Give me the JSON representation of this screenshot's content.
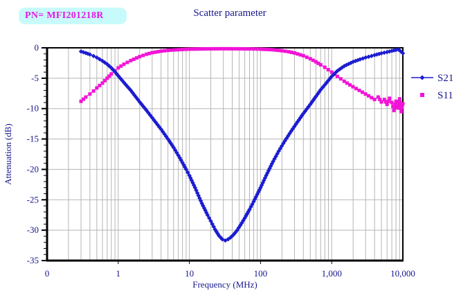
{
  "badge": {
    "label": "PN= MFI201218R",
    "bg": "#c9fafb",
    "text_color": "#e318e3"
  },
  "title": "Scatter parameter",
  "colors": {
    "axis_text": "#16168c",
    "grid": "#b5b5b5",
    "axis": "#000000",
    "background": "#ffffff"
  },
  "legend": {
    "items": [
      {
        "label": "S21",
        "color": "#1c1cd2",
        "marker": "diamond"
      },
      {
        "label": "S11",
        "color": "#f213d6",
        "marker": "square"
      }
    ]
  },
  "chart_data": {
    "type": "line",
    "title": "Scatter parameter",
    "xlabel": "Frequency (MHz)",
    "ylabel": "Attenuation (dB)",
    "x_scale": "log",
    "xlim": [
      0.1,
      10000
    ],
    "ylim": [
      -35,
      0
    ],
    "x_ticks": [
      {
        "value": 0.1,
        "label": "0"
      },
      {
        "value": 1,
        "label": "1"
      },
      {
        "value": 10,
        "label": "10"
      },
      {
        "value": 100,
        "label": "100"
      },
      {
        "value": 1000,
        "label": "1,000"
      },
      {
        "value": 10000,
        "label": "10,000"
      }
    ],
    "y_ticks": [
      0,
      -5,
      -10,
      -15,
      -20,
      -25,
      -30,
      -35
    ],
    "y_minor_tick_step": 1,
    "grid": true,
    "legend_position": "right-outside",
    "series": [
      {
        "name": "S21",
        "color": "#1c1cd2",
        "marker": "diamond",
        "points": [
          [
            0.3,
            -0.6
          ],
          [
            0.35,
            -0.85
          ],
          [
            0.4,
            -1.1
          ],
          [
            0.45,
            -1.35
          ],
          [
            0.5,
            -1.6
          ],
          [
            0.6,
            -2.15
          ],
          [
            0.7,
            -2.7
          ],
          [
            0.8,
            -3.3
          ],
          [
            0.9,
            -3.95
          ],
          [
            1,
            -4.6
          ],
          [
            1.2,
            -5.7
          ],
          [
            1.5,
            -7.0
          ],
          [
            2,
            -8.9
          ],
          [
            2.5,
            -10.3
          ],
          [
            3,
            -11.5
          ],
          [
            4,
            -13.4
          ],
          [
            5,
            -15.0
          ],
          [
            6,
            -16.4
          ],
          [
            7,
            -17.7
          ],
          [
            8,
            -18.9
          ],
          [
            9,
            -20.0
          ],
          [
            10,
            -21.0
          ],
          [
            12,
            -23.0
          ],
          [
            15,
            -25.6
          ],
          [
            18,
            -27.5
          ],
          [
            20,
            -28.5
          ],
          [
            23,
            -29.9
          ],
          [
            26,
            -30.9
          ],
          [
            29,
            -31.5
          ],
          [
            32,
            -31.7
          ],
          [
            35,
            -31.5
          ],
          [
            38,
            -31.2
          ],
          [
            42,
            -30.7
          ],
          [
            47,
            -30.0
          ],
          [
            52,
            -29.2
          ],
          [
            60,
            -28.0
          ],
          [
            70,
            -26.6
          ],
          [
            80,
            -25.3
          ],
          [
            90,
            -24.1
          ],
          [
            100,
            -23.0
          ],
          [
            120,
            -21.0
          ],
          [
            150,
            -18.7
          ],
          [
            180,
            -17.0
          ],
          [
            220,
            -15.3
          ],
          [
            270,
            -13.7
          ],
          [
            330,
            -12.2
          ],
          [
            400,
            -10.8
          ],
          [
            500,
            -9.3
          ],
          [
            600,
            -8.0
          ],
          [
            700,
            -6.9
          ],
          [
            800,
            -6.1
          ],
          [
            1000,
            -4.7
          ],
          [
            1200,
            -3.8
          ],
          [
            1500,
            -3.0
          ],
          [
            2000,
            -2.3
          ],
          [
            2500,
            -1.9
          ],
          [
            3000,
            -1.6
          ],
          [
            4000,
            -1.2
          ],
          [
            5000,
            -0.9
          ],
          [
            6000,
            -0.7
          ],
          [
            7000,
            -0.5
          ],
          [
            8000,
            -0.35
          ],
          [
            8700,
            -0.3
          ],
          [
            9300,
            -0.55
          ],
          [
            10000,
            -0.9
          ]
        ]
      },
      {
        "name": "S11",
        "color": "#f213d6",
        "marker": "square",
        "points": [
          [
            0.3,
            -8.8
          ],
          [
            0.35,
            -8.1
          ],
          [
            0.4,
            -7.6
          ],
          [
            0.45,
            -7.1
          ],
          [
            0.5,
            -6.6
          ],
          [
            0.6,
            -5.8
          ],
          [
            0.7,
            -5.0
          ],
          [
            0.8,
            -4.3
          ],
          [
            0.9,
            -3.8
          ],
          [
            1,
            -3.3
          ],
          [
            1.2,
            -2.7
          ],
          [
            1.5,
            -2.1
          ],
          [
            2,
            -1.45
          ],
          [
            2.5,
            -1.05
          ],
          [
            3,
            -0.8
          ],
          [
            4,
            -0.55
          ],
          [
            5,
            -0.42
          ],
          [
            6,
            -0.35
          ],
          [
            8,
            -0.27
          ],
          [
            10,
            -0.22
          ],
          [
            15,
            -0.18
          ],
          [
            20,
            -0.16
          ],
          [
            30,
            -0.15
          ],
          [
            50,
            -0.16
          ],
          [
            70,
            -0.18
          ],
          [
            100,
            -0.22
          ],
          [
            150,
            -0.32
          ],
          [
            200,
            -0.48
          ],
          [
            250,
            -0.65
          ],
          [
            300,
            -0.85
          ],
          [
            400,
            -1.3
          ],
          [
            500,
            -1.8
          ],
          [
            600,
            -2.3
          ],
          [
            700,
            -2.8
          ],
          [
            800,
            -3.2
          ],
          [
            1000,
            -4.0
          ],
          [
            1200,
            -4.7
          ],
          [
            1500,
            -5.5
          ],
          [
            1800,
            -6.1
          ],
          [
            2200,
            -6.7
          ],
          [
            2700,
            -7.3
          ],
          [
            3300,
            -7.9
          ],
          [
            4000,
            -8.5
          ],
          [
            4500,
            -8.1
          ],
          [
            5000,
            -8.9
          ],
          [
            5500,
            -8.5
          ],
          [
            6000,
            -9.3
          ],
          [
            6500,
            -8.3
          ],
          [
            7000,
            -9.0
          ],
          [
            7500,
            -10.3
          ],
          [
            8000,
            -8.8
          ],
          [
            8500,
            -9.9
          ],
          [
            9000,
            -8.4
          ],
          [
            9500,
            -10.5
          ],
          [
            10000,
            -9.2
          ]
        ]
      }
    ]
  }
}
